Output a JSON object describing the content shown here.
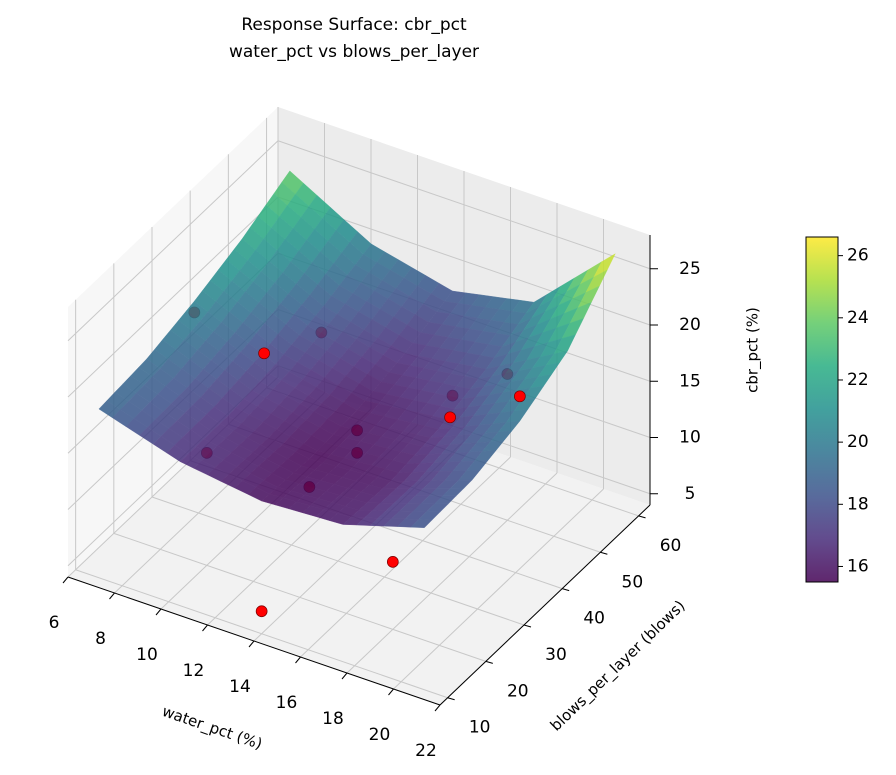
{
  "chart_data": {
    "type": "surface3d",
    "title": "Response Surface: cbr_pct",
    "subtitle": "water_pct vs blows_per_layer",
    "x_label": "water_pct (%)",
    "y_label": "blows_per_layer (blows)",
    "z_label": "cbr_pct (%)",
    "xlim": [
      6,
      22
    ],
    "ylim": [
      8,
      63
    ],
    "zlim": [
      4,
      28
    ],
    "xticks": [
      6,
      8,
      10,
      12,
      14,
      16,
      18,
      20,
      22
    ],
    "yticks": [
      10,
      20,
      30,
      40,
      50,
      60
    ],
    "zticks": [
      5,
      10,
      15,
      20,
      25
    ],
    "surface": {
      "x": [
        7,
        10.5,
        14,
        17.5,
        21
      ],
      "y": [
        10,
        22.5,
        35,
        47.5,
        60
      ],
      "z": [
        [
          19.0,
          16.8,
          15.8,
          16.2,
          18.4
        ],
        [
          19.4,
          16.8,
          15.5,
          16.0,
          18.6
        ],
        [
          20.5,
          17.4,
          15.8,
          16.6,
          19.8
        ],
        [
          22.0,
          18.5,
          16.8,
          17.9,
          22.0
        ],
        [
          24.0,
          20.0,
          18.3,
          19.8,
          26.6
        ]
      ],
      "colormap": "viridis",
      "alpha": 0.85
    },
    "points": {
      "x": [
        7,
        21,
        14,
        14,
        10,
        18,
        10,
        18,
        14,
        14,
        10,
        18,
        14
      ],
      "y": [
        35,
        35,
        10,
        60,
        20,
        20,
        50,
        50,
        35,
        35,
        35,
        35,
        22.5
      ],
      "z": [
        19.5,
        22,
        6,
        9,
        14,
        10,
        15,
        17,
        14,
        12,
        18,
        18,
        13
      ],
      "color": "#ff0000"
    },
    "colorbar": {
      "lim": [
        15.5,
        26.6
      ],
      "ticks": [
        16,
        18,
        20,
        22,
        24,
        26
      ]
    },
    "grid": true
  }
}
